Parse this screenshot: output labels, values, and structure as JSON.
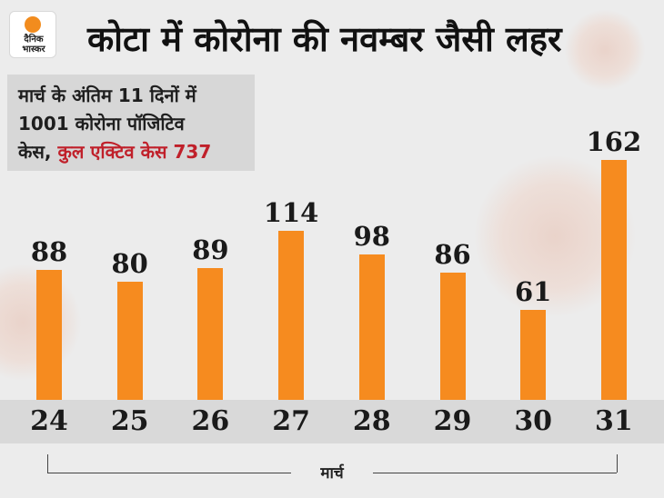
{
  "logo": {
    "line1": "दैनिक",
    "line2": "भास्कर"
  },
  "title": "कोटा में कोरोना की नवम्बर जैसी लहर",
  "summary": {
    "line1": "मार्च के अंतिम 11 दिनों में",
    "line2": "1001 कोरोना पॉजिटिव",
    "line3_prefix": "केस,",
    "line3_highlight": "कुल एक्टिव केस 737"
  },
  "colors": {
    "bar": "#f68b1f",
    "highlight": "#c0202a",
    "background": "#ececec"
  },
  "chart_data": {
    "type": "bar",
    "title": "कोटा में कोरोना की नवम्बर जैसी लहर",
    "xlabel": "मार्च",
    "ylabel": "",
    "categories": [
      "24",
      "25",
      "26",
      "27",
      "28",
      "29",
      "30",
      "31"
    ],
    "values": [
      88,
      80,
      89,
      114,
      98,
      86,
      61,
      162
    ],
    "ylim": [
      0,
      162
    ],
    "grid": false,
    "legend": "none"
  }
}
